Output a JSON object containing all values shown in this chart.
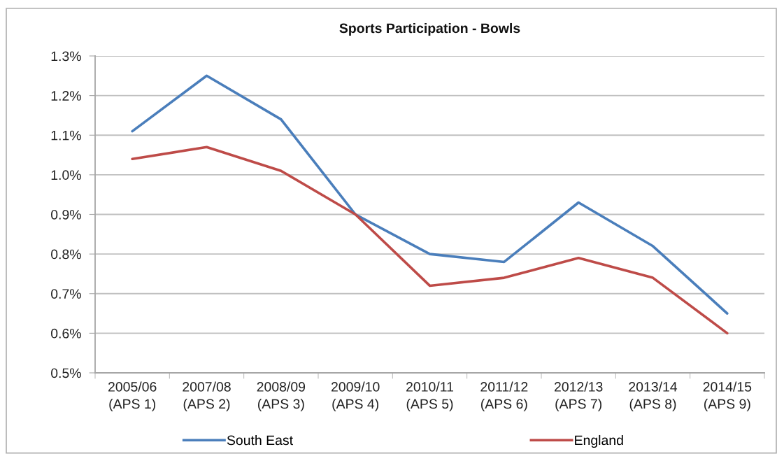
{
  "chart_data": {
    "type": "line",
    "title": "Sports Participation - Bowls",
    "categories": [
      "2005/06\n(APS 1)",
      "2007/08\n(APS 2)",
      "2008/09\n(APS 3)",
      "2009/10\n(APS 4)",
      "2010/11\n(APS 5)",
      "2011/12\n(APS 6)",
      "2012/13\n(APS 7)",
      "2013/14\n(APS 8)",
      "2014/15\n(APS 9)"
    ],
    "series": [
      {
        "name": "South East",
        "color": "#4a7ebb",
        "values": [
          1.11,
          1.25,
          1.14,
          0.9,
          0.8,
          0.78,
          0.93,
          0.82,
          0.65
        ]
      },
      {
        "name": "England",
        "color": "#be4b48",
        "values": [
          1.04,
          1.07,
          1.01,
          0.9,
          0.72,
          0.74,
          0.79,
          0.74,
          0.6
        ]
      }
    ],
    "ylim": [
      0.5,
      1.3
    ],
    "yticks": [
      {
        "value": 0.5,
        "label": "0.5%"
      },
      {
        "value": 0.6,
        "label": "0.6%"
      },
      {
        "value": 0.7,
        "label": "0.7%"
      },
      {
        "value": 0.8,
        "label": "0.8%"
      },
      {
        "value": 0.9,
        "label": "0.9%"
      },
      {
        "value": 1.0,
        "label": "1.0%"
      },
      {
        "value": 1.1,
        "label": "1.1%"
      },
      {
        "value": 1.2,
        "label": "1.2%"
      },
      {
        "value": 1.3,
        "label": "1.3%"
      }
    ],
    "grid": "y",
    "legend": "bottom"
  }
}
